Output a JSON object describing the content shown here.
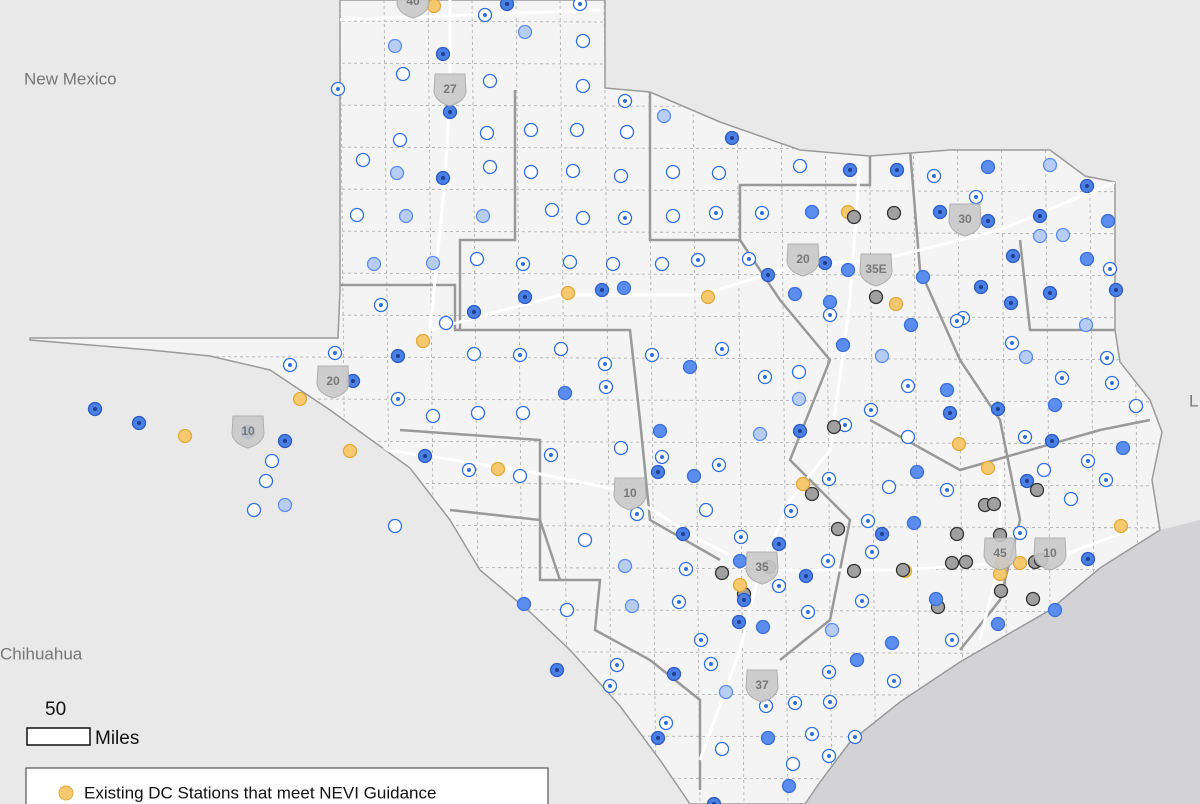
{
  "labels": {
    "new_mexico": "New Mexico",
    "chihuahua": "Chihuahua",
    "louisiana_edge": "L"
  },
  "scale": {
    "distance": "50",
    "unit": "Miles"
  },
  "legend": {
    "items": [
      "Existing DC Stations that meet NEVI Guidance"
    ]
  },
  "shields": [
    "40",
    "27",
    "20",
    "10",
    "20",
    "35E",
    "30",
    "10",
    "35",
    "45",
    "10",
    "37"
  ]
}
